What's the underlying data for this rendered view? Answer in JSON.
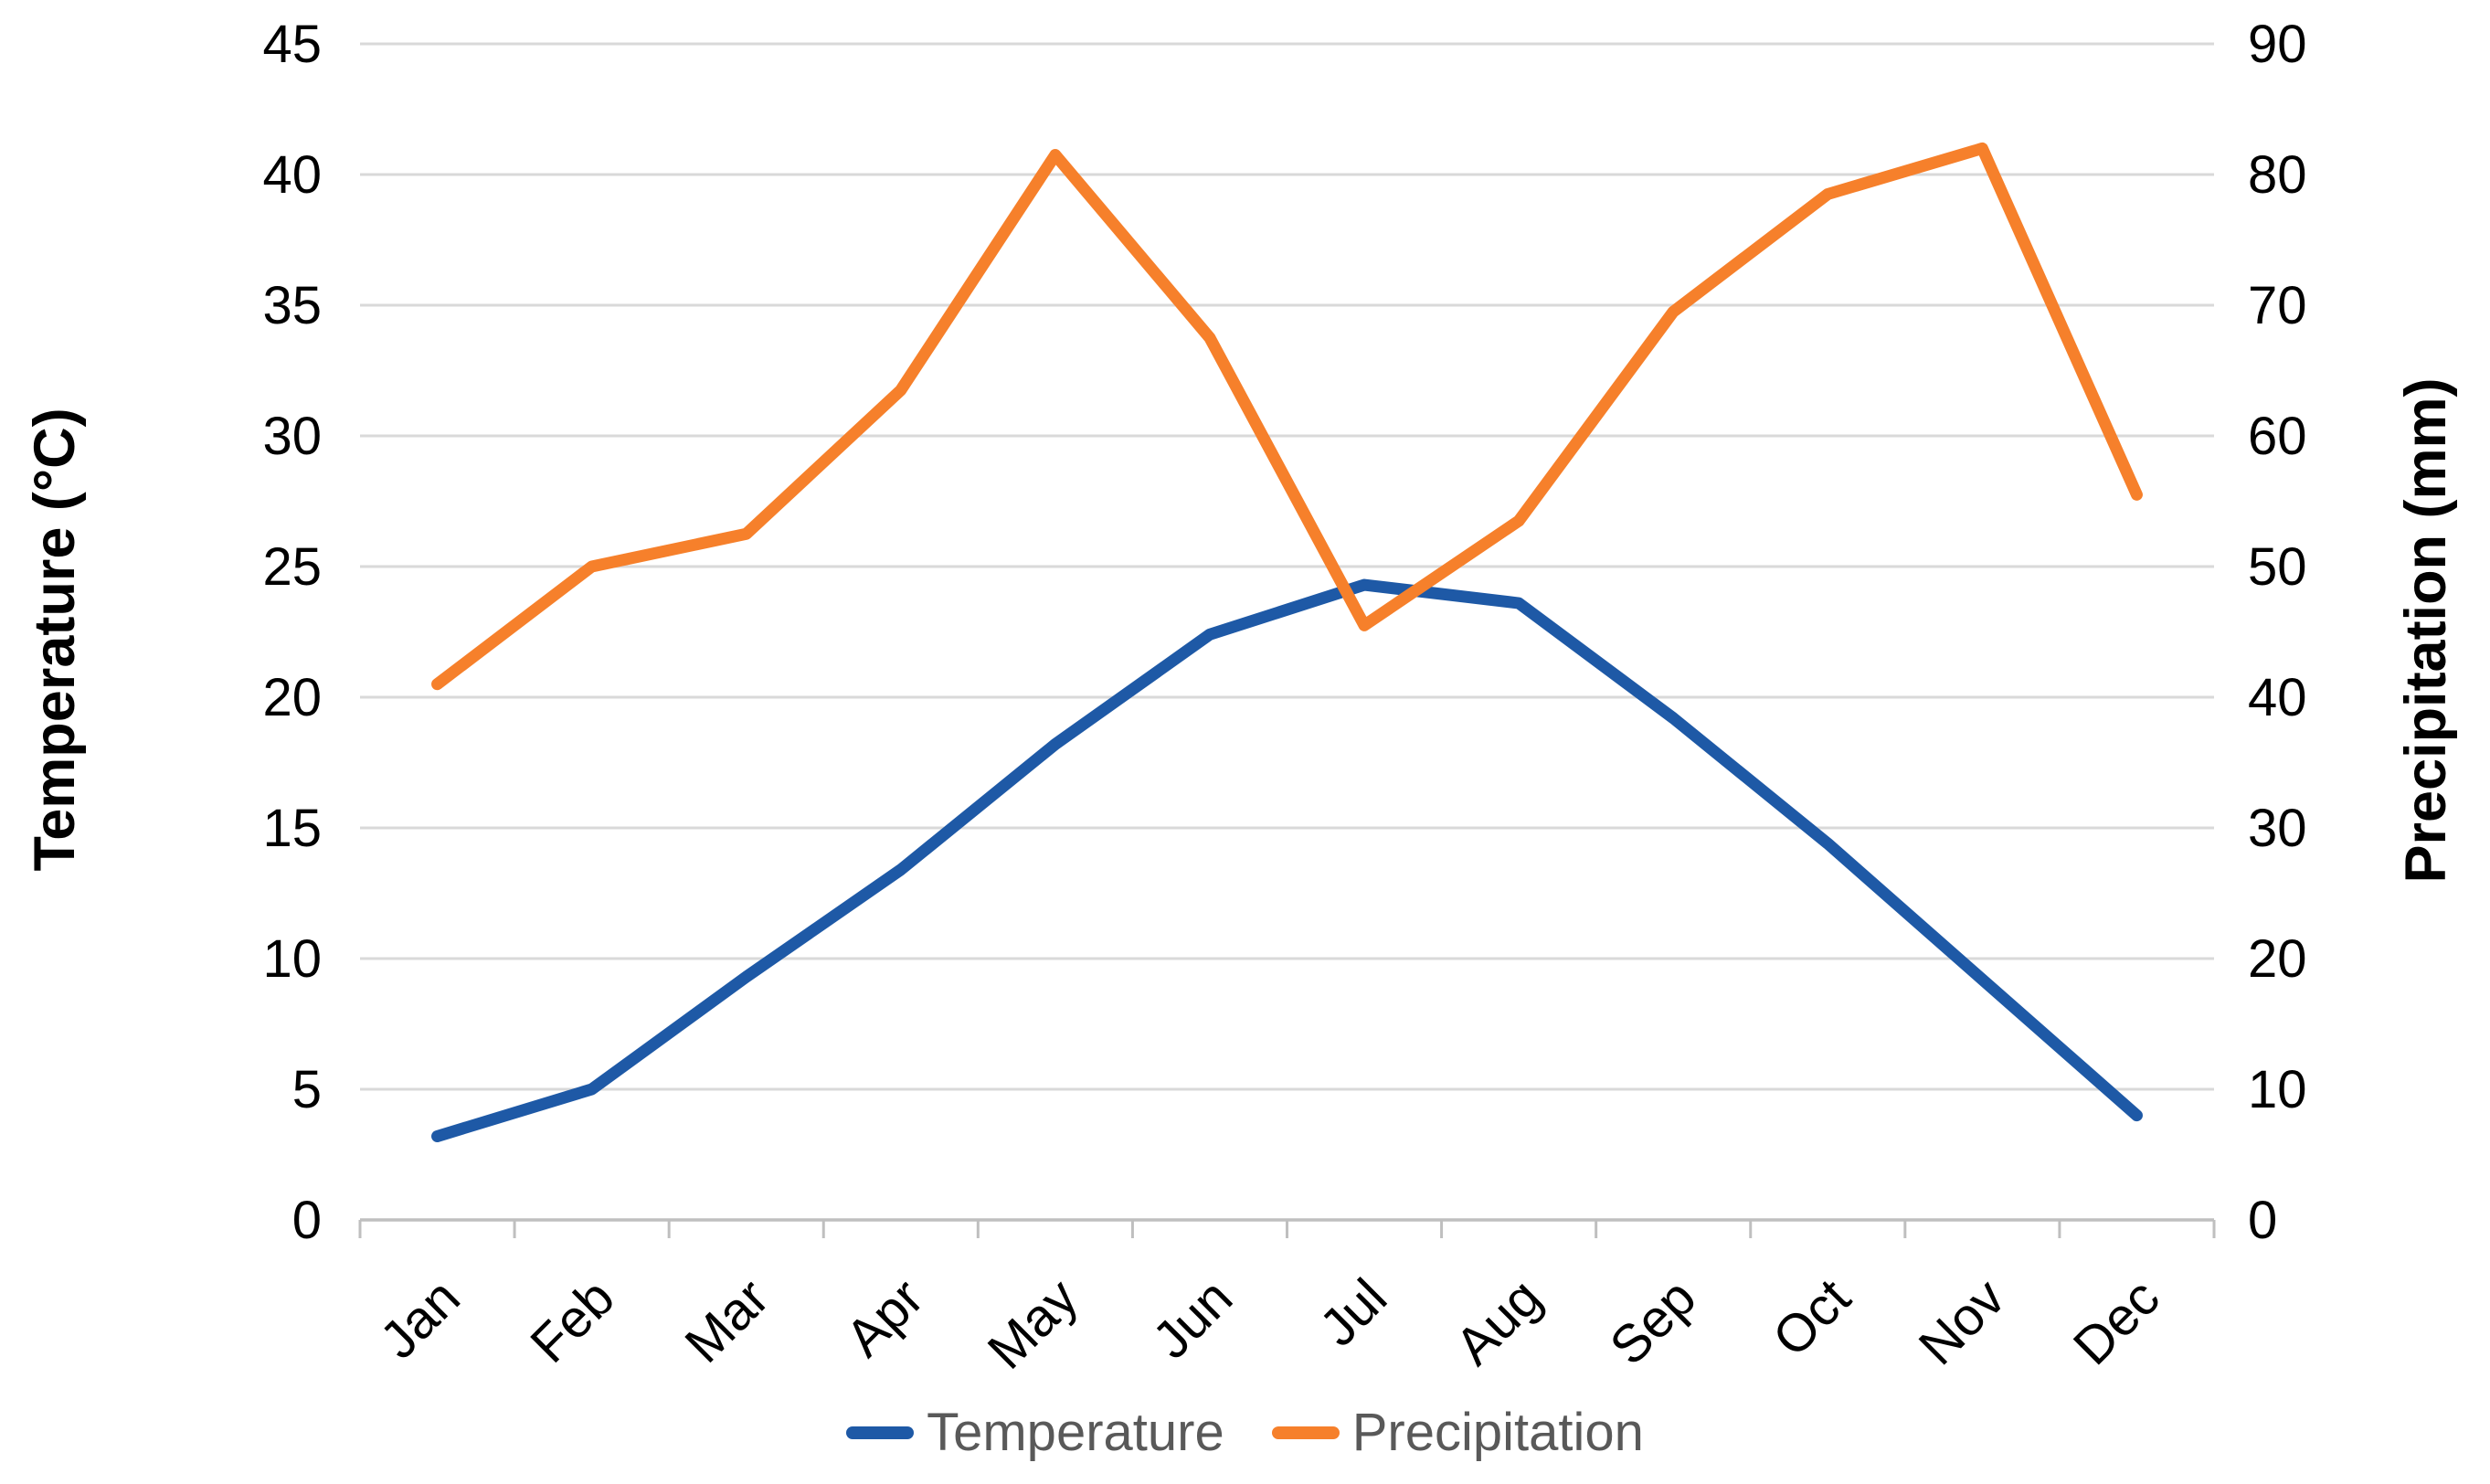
{
  "chart_data": {
    "type": "line",
    "categories": [
      "Jan",
      "Feb",
      "Mar",
      "Apr",
      "May",
      "Jun",
      "Jul",
      "Aug",
      "Sep",
      "Oct",
      "Nov",
      "Dec"
    ],
    "series": [
      {
        "name": "Temperature",
        "axis": "left",
        "color": "#1E59A6",
        "values": [
          3.2,
          5.0,
          9.3,
          13.4,
          18.2,
          22.4,
          24.3,
          23.6,
          19.2,
          14.4,
          9.2,
          4.0
        ]
      },
      {
        "name": "Precipitation",
        "axis": "right",
        "color": "#F6802B",
        "values": [
          41,
          50,
          52.5,
          63.5,
          81.5,
          67.5,
          45.5,
          53.5,
          69.5,
          78.5,
          82,
          55.5
        ]
      }
    ],
    "left_axis": {
      "label": "Temperature (°C)",
      "min": 0,
      "max": 45,
      "step": 5,
      "tick_values": [
        45,
        40,
        35,
        30,
        25,
        20,
        15,
        10,
        5,
        0
      ],
      "tick_labels": [
        "45",
        "40",
        "35",
        "30",
        "25",
        "20",
        "15",
        "10",
        "5",
        "0"
      ]
    },
    "right_axis": {
      "label": "Precipitation (mm)",
      "min": 0,
      "max": 90,
      "step": 10,
      "tick_values": [
        90,
        80,
        70,
        60,
        50,
        40,
        30,
        20,
        10,
        0
      ],
      "tick_labels": [
        "90",
        "80",
        "70",
        "60",
        "50",
        "40",
        "30",
        "20",
        "10",
        "0"
      ]
    },
    "grid": true,
    "legend_position": "bottom",
    "colors": {
      "gridline": "#D9D9D9",
      "axis_line": "#BFBFBF",
      "tick_text": "#000000",
      "legend_text": "#595959"
    }
  }
}
